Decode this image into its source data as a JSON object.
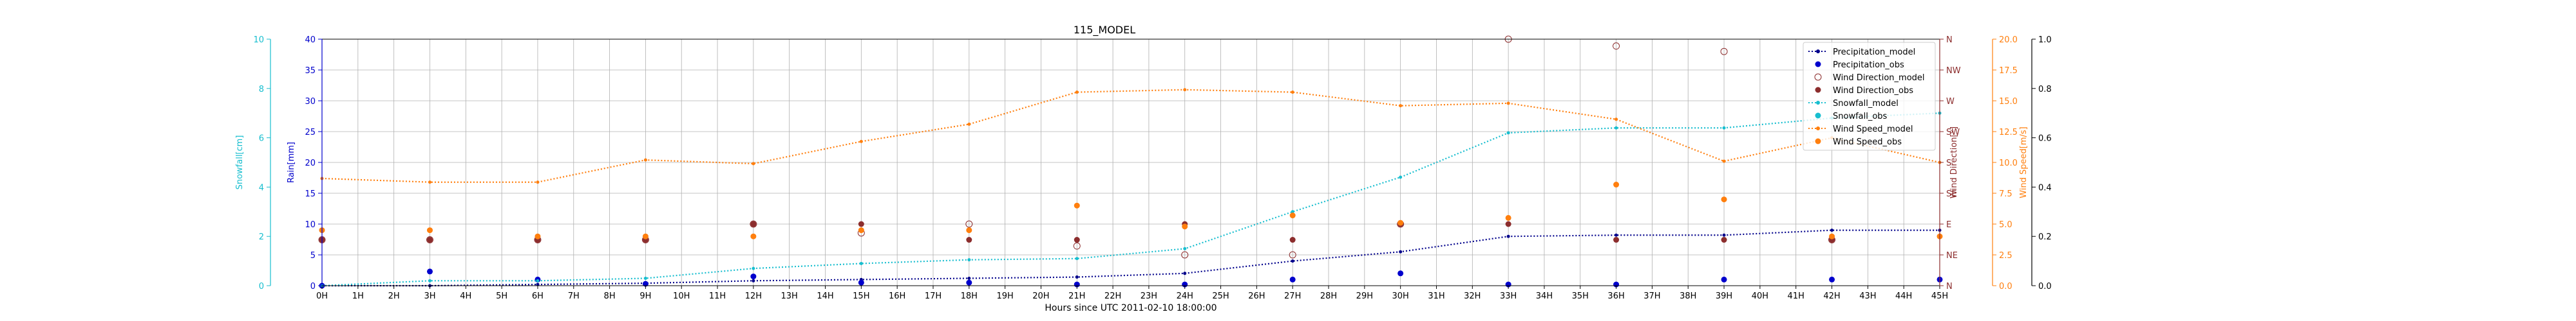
{
  "chart_data": {
    "type": "line",
    "title": "115_MODEL",
    "xlabel": "Hours since UTC 2011-02-10 18:00:00",
    "x": [
      0,
      1,
      2,
      3,
      4,
      5,
      6,
      7,
      8,
      9,
      10,
      11,
      12,
      13,
      14,
      15,
      16,
      17,
      18,
      19,
      20,
      21,
      22,
      23,
      24,
      25,
      26,
      27,
      28,
      29,
      30,
      31,
      32,
      33,
      34,
      35,
      36,
      37,
      38,
      39,
      40,
      41,
      42,
      43,
      44,
      45
    ],
    "x_tick_labels": [
      "0H",
      "1H",
      "2H",
      "3H",
      "4H",
      "5H",
      "6H",
      "7H",
      "8H",
      "9H",
      "10H",
      "11H",
      "12H",
      "13H",
      "14H",
      "15H",
      "16H",
      "17H",
      "18H",
      "19H",
      "20H",
      "21H",
      "22H",
      "23H",
      "24H",
      "25H",
      "26H",
      "27H",
      "28H",
      "29H",
      "30H",
      "31H",
      "32H",
      "33H",
      "34H",
      "35H",
      "36H",
      "37H",
      "38H",
      "39H",
      "40H",
      "41H",
      "42H",
      "43H",
      "44H",
      "45H"
    ],
    "xlim": [
      0,
      45
    ],
    "grid": true,
    "legend_position": "top-right",
    "axes": {
      "rain": {
        "label": "Rain[mm]",
        "ylim": [
          0,
          40
        ],
        "ticks": [
          0,
          5,
          10,
          15,
          20,
          25,
          30,
          35,
          40
        ],
        "tick_labels": [
          "0",
          "5",
          "10",
          "15",
          "20",
          "25",
          "30",
          "35",
          "40"
        ],
        "color": "#0000cc",
        "position": "left"
      },
      "snow": {
        "label": "Snowfall[cm]",
        "ylim": [
          0,
          10
        ],
        "ticks": [
          0,
          2,
          4,
          6,
          8,
          10
        ],
        "tick_labels": [
          "0",
          "2",
          "4",
          "6",
          "8",
          "10"
        ],
        "color": "#17becf",
        "position": "left-outer"
      },
      "wdir": {
        "label": "Wind Direction[°]",
        "ylim": [
          0,
          360
        ],
        "ticks": [
          0,
          45,
          90,
          135,
          180,
          225,
          270,
          315,
          360
        ],
        "tick_labels": [
          "N",
          "NE",
          "E",
          "SE",
          "S",
          "SW",
          "W",
          "NW",
          "N"
        ],
        "color": "#8c2d2d",
        "position": "right"
      },
      "wspd": {
        "label": "Wind Speed[m/s]",
        "ylim": [
          0,
          20
        ],
        "ticks": [
          0,
          2.5,
          5,
          7.5,
          10,
          12.5,
          15,
          17.5,
          20
        ],
        "tick_labels": [
          "0.0",
          "2.5",
          "5.0",
          "7.5",
          "10.0",
          "12.5",
          "15.0",
          "17.5",
          "20.0"
        ],
        "color": "#ff7f0e",
        "position": "right-outer"
      },
      "extra": {
        "ylim": [
          0,
          1
        ],
        "ticks": [
          0,
          0.2,
          0.4,
          0.6,
          0.8,
          1.0
        ],
        "tick_labels": [
          "0.0",
          "0.2",
          "0.4",
          "0.6",
          "0.8",
          "1.0"
        ],
        "color": "#000000",
        "position": "right-outer-2"
      }
    },
    "series": [
      {
        "name": "Precipitation_model",
        "axis": "rain",
        "style": "line-dot",
        "color": "#00008b",
        "x": [
          0,
          3,
          6,
          9,
          12,
          15,
          18,
          21,
          24,
          27,
          30,
          33,
          36,
          39,
          42,
          45
        ],
        "y": [
          0,
          0,
          0.2,
          0.4,
          0.8,
          1,
          1.2,
          1.4,
          2,
          4,
          5.5,
          8,
          8.2,
          8.2,
          9,
          9
        ]
      },
      {
        "name": "Precipitation_obs",
        "axis": "rain",
        "style": "marker",
        "color": "#0000cd",
        "x": [
          0,
          3,
          6,
          9,
          12,
          15,
          18,
          21,
          24,
          27,
          30,
          33,
          36,
          39,
          42,
          45
        ],
        "y": [
          0,
          2.3,
          1,
          0.3,
          1.5,
          0.5,
          0.5,
          0.2,
          0.2,
          1,
          2,
          0.2,
          0.2,
          1,
          1,
          1
        ]
      },
      {
        "name": "Wind Direction_model",
        "axis": "wdir",
        "style": "hollow-marker",
        "color": "#8c2d2d",
        "x": [
          0,
          3,
          6,
          9,
          12,
          15,
          18,
          21,
          24,
          27,
          30,
          33,
          36,
          39,
          42
        ],
        "y": [
          67,
          67,
          67,
          67,
          90,
          77,
          90,
          58,
          45,
          45,
          90,
          360,
          350,
          342,
          67
        ]
      },
      {
        "name": "Wind Direction_obs",
        "axis": "wdir",
        "style": "marker",
        "color": "#8c2d2d",
        "x": [
          0,
          3,
          6,
          9,
          12,
          15,
          18,
          21,
          24,
          27,
          30,
          33,
          36,
          39,
          42
        ],
        "y": [
          67,
          67,
          67,
          67,
          90,
          90,
          67,
          67,
          90,
          67,
          90,
          90,
          67,
          67,
          67
        ]
      },
      {
        "name": "Snowfall_model",
        "axis": "snow",
        "style": "line-dot",
        "color": "#17becf",
        "x": [
          0,
          3,
          6,
          9,
          12,
          15,
          18,
          21,
          24,
          27,
          30,
          33,
          36,
          39,
          42,
          45
        ],
        "y": [
          0,
          0.2,
          0.2,
          0.3,
          0.7,
          0.9,
          1.05,
          1.1,
          1.5,
          3,
          4.4,
          6.2,
          6.4,
          6.4,
          6.8,
          7
        ]
      },
      {
        "name": "Snowfall_obs",
        "axis": "snow",
        "style": "marker",
        "color": "#17becf",
        "x": [],
        "y": []
      },
      {
        "name": "Wind Speed_model",
        "axis": "wspd",
        "style": "line-dot",
        "color": "#ff7f0e",
        "x": [
          0,
          3,
          6,
          9,
          12,
          15,
          18,
          21,
          24,
          27,
          30,
          33,
          36,
          39,
          42,
          45
        ],
        "y": [
          8.7,
          8.4,
          8.4,
          10.2,
          9.9,
          11.7,
          13.1,
          15.7,
          15.9,
          15.7,
          14.6,
          14.8,
          13.5,
          10.1,
          12,
          10
        ]
      },
      {
        "name": "Wind Speed_obs",
        "axis": "wspd",
        "style": "marker",
        "color": "#ff7f0e",
        "x": [
          0,
          3,
          6,
          9,
          12,
          15,
          18,
          21,
          24,
          27,
          30,
          33,
          36,
          39,
          42,
          45
        ],
        "y": [
          4.5,
          4.5,
          4,
          4,
          4,
          4.5,
          4.5,
          6.5,
          4.8,
          5.7,
          5.1,
          5.5,
          8.2,
          7,
          4,
          4
        ]
      }
    ]
  }
}
